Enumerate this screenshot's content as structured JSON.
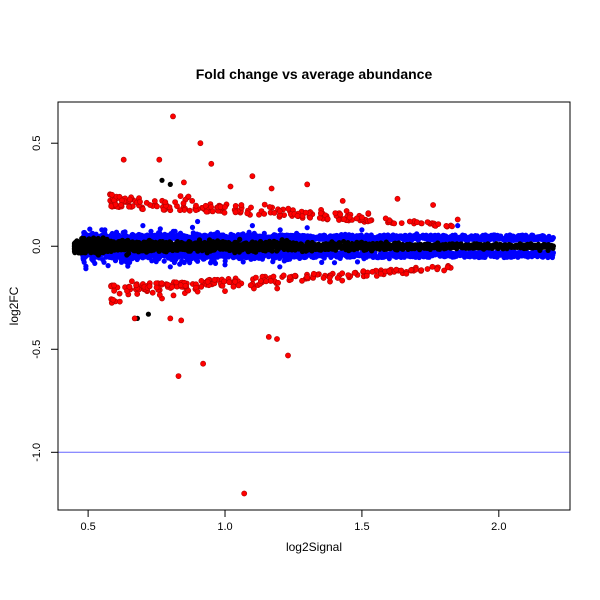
{
  "chart_data": {
    "type": "scatter",
    "title": "Fold change vs average abundance",
    "xlabel": "log2Signal",
    "ylabel": "log2FC",
    "xlim": [
      0.39,
      2.26
    ],
    "ylim": [
      -1.28,
      0.7
    ],
    "x_ticks": [
      0.5,
      1.0,
      1.5,
      2.0
    ],
    "x_tick_labels": [
      "0.5",
      "1.0",
      "1.5",
      "2.0"
    ],
    "y_ticks": [
      0.5,
      0.0,
      -0.5,
      -1.0
    ],
    "y_tick_labels": [
      "0.5",
      "0.0",
      "-0.5",
      "-1.0"
    ],
    "hline": {
      "y": -1.0,
      "color": "#6666ff"
    },
    "grid": false,
    "legend": "none",
    "colors": {
      "black": "#000000",
      "blue": "#0000ff",
      "red": "#ff0000",
      "red_outline": "#b00000"
    },
    "series": [
      {
        "color": "black",
        "description_points": [
          [
            0.45,
            -0.01
          ],
          [
            0.47,
            0.02
          ],
          [
            0.48,
            -0.03
          ],
          [
            0.5,
            0.01
          ],
          [
            0.52,
            0.04
          ],
          [
            0.55,
            -0.02
          ],
          [
            0.6,
            0.0
          ],
          [
            0.7,
            0.01
          ],
          [
            0.8,
            -0.01
          ],
          [
            1.0,
            0.0
          ],
          [
            1.2,
            0.0
          ],
          [
            1.5,
            0.0
          ],
          [
            1.8,
            -0.01
          ],
          [
            2.0,
            0.0
          ],
          [
            2.1,
            -0.01
          ],
          [
            2.15,
            -0.02
          ],
          [
            2.18,
            -0.02
          ],
          [
            0.72,
            -0.33
          ],
          [
            0.68,
            -0.35
          ],
          [
            0.77,
            0.32
          ],
          [
            0.8,
            0.3
          ]
        ]
      },
      {
        "color": "blue",
        "description_points": [
          [
            0.55,
            0.08
          ],
          [
            0.6,
            -0.07
          ],
          [
            0.7,
            0.1
          ],
          [
            0.8,
            -0.1
          ],
          [
            0.9,
            0.12
          ],
          [
            1.0,
            -0.09
          ],
          [
            1.1,
            0.1
          ],
          [
            1.2,
            -0.1
          ],
          [
            1.3,
            0.09
          ],
          [
            1.4,
            -0.08
          ],
          [
            1.5,
            0.08
          ],
          [
            1.6,
            -0.06
          ],
          [
            1.7,
            0.06
          ],
          [
            1.8,
            -0.05
          ],
          [
            1.9,
            0.05
          ],
          [
            2.0,
            -0.03
          ],
          [
            2.1,
            0.03
          ],
          [
            1.85,
            0.1
          ]
        ]
      },
      {
        "color": "red",
        "points": [
          [
            0.81,
            0.63
          ],
          [
            0.91,
            0.5
          ],
          [
            0.63,
            0.42
          ],
          [
            0.76,
            0.42
          ],
          [
            0.95,
            0.4
          ],
          [
            1.1,
            0.34
          ],
          [
            0.85,
            0.31
          ],
          [
            1.02,
            0.29
          ],
          [
            1.17,
            0.28
          ],
          [
            1.3,
            0.3
          ],
          [
            1.43,
            0.22
          ],
          [
            1.63,
            0.23
          ],
          [
            1.76,
            0.2
          ],
          [
            1.85,
            0.13
          ],
          [
            0.67,
            -0.35
          ],
          [
            0.8,
            -0.35
          ],
          [
            0.84,
            -0.36
          ],
          [
            0.92,
            -0.57
          ],
          [
            0.83,
            -0.63
          ],
          [
            1.19,
            -0.45
          ],
          [
            1.16,
            -0.44
          ],
          [
            1.23,
            -0.53
          ],
          [
            1.07,
            -1.2
          ],
          [
            0.62,
            0.2
          ],
          [
            0.7,
            0.18
          ],
          [
            0.88,
            0.22
          ],
          [
            1.0,
            0.19
          ],
          [
            1.06,
            0.2
          ],
          [
            1.2,
            0.17
          ],
          [
            1.35,
            0.16
          ],
          [
            1.5,
            0.14
          ],
          [
            0.66,
            -0.17
          ],
          [
            0.75,
            -0.2
          ],
          [
            0.9,
            -0.22
          ],
          [
            1.05,
            -0.19
          ],
          [
            1.15,
            -0.17
          ],
          [
            1.3,
            -0.15
          ],
          [
            1.45,
            -0.14
          ],
          [
            1.6,
            -0.12
          ]
        ]
      }
    ]
  }
}
